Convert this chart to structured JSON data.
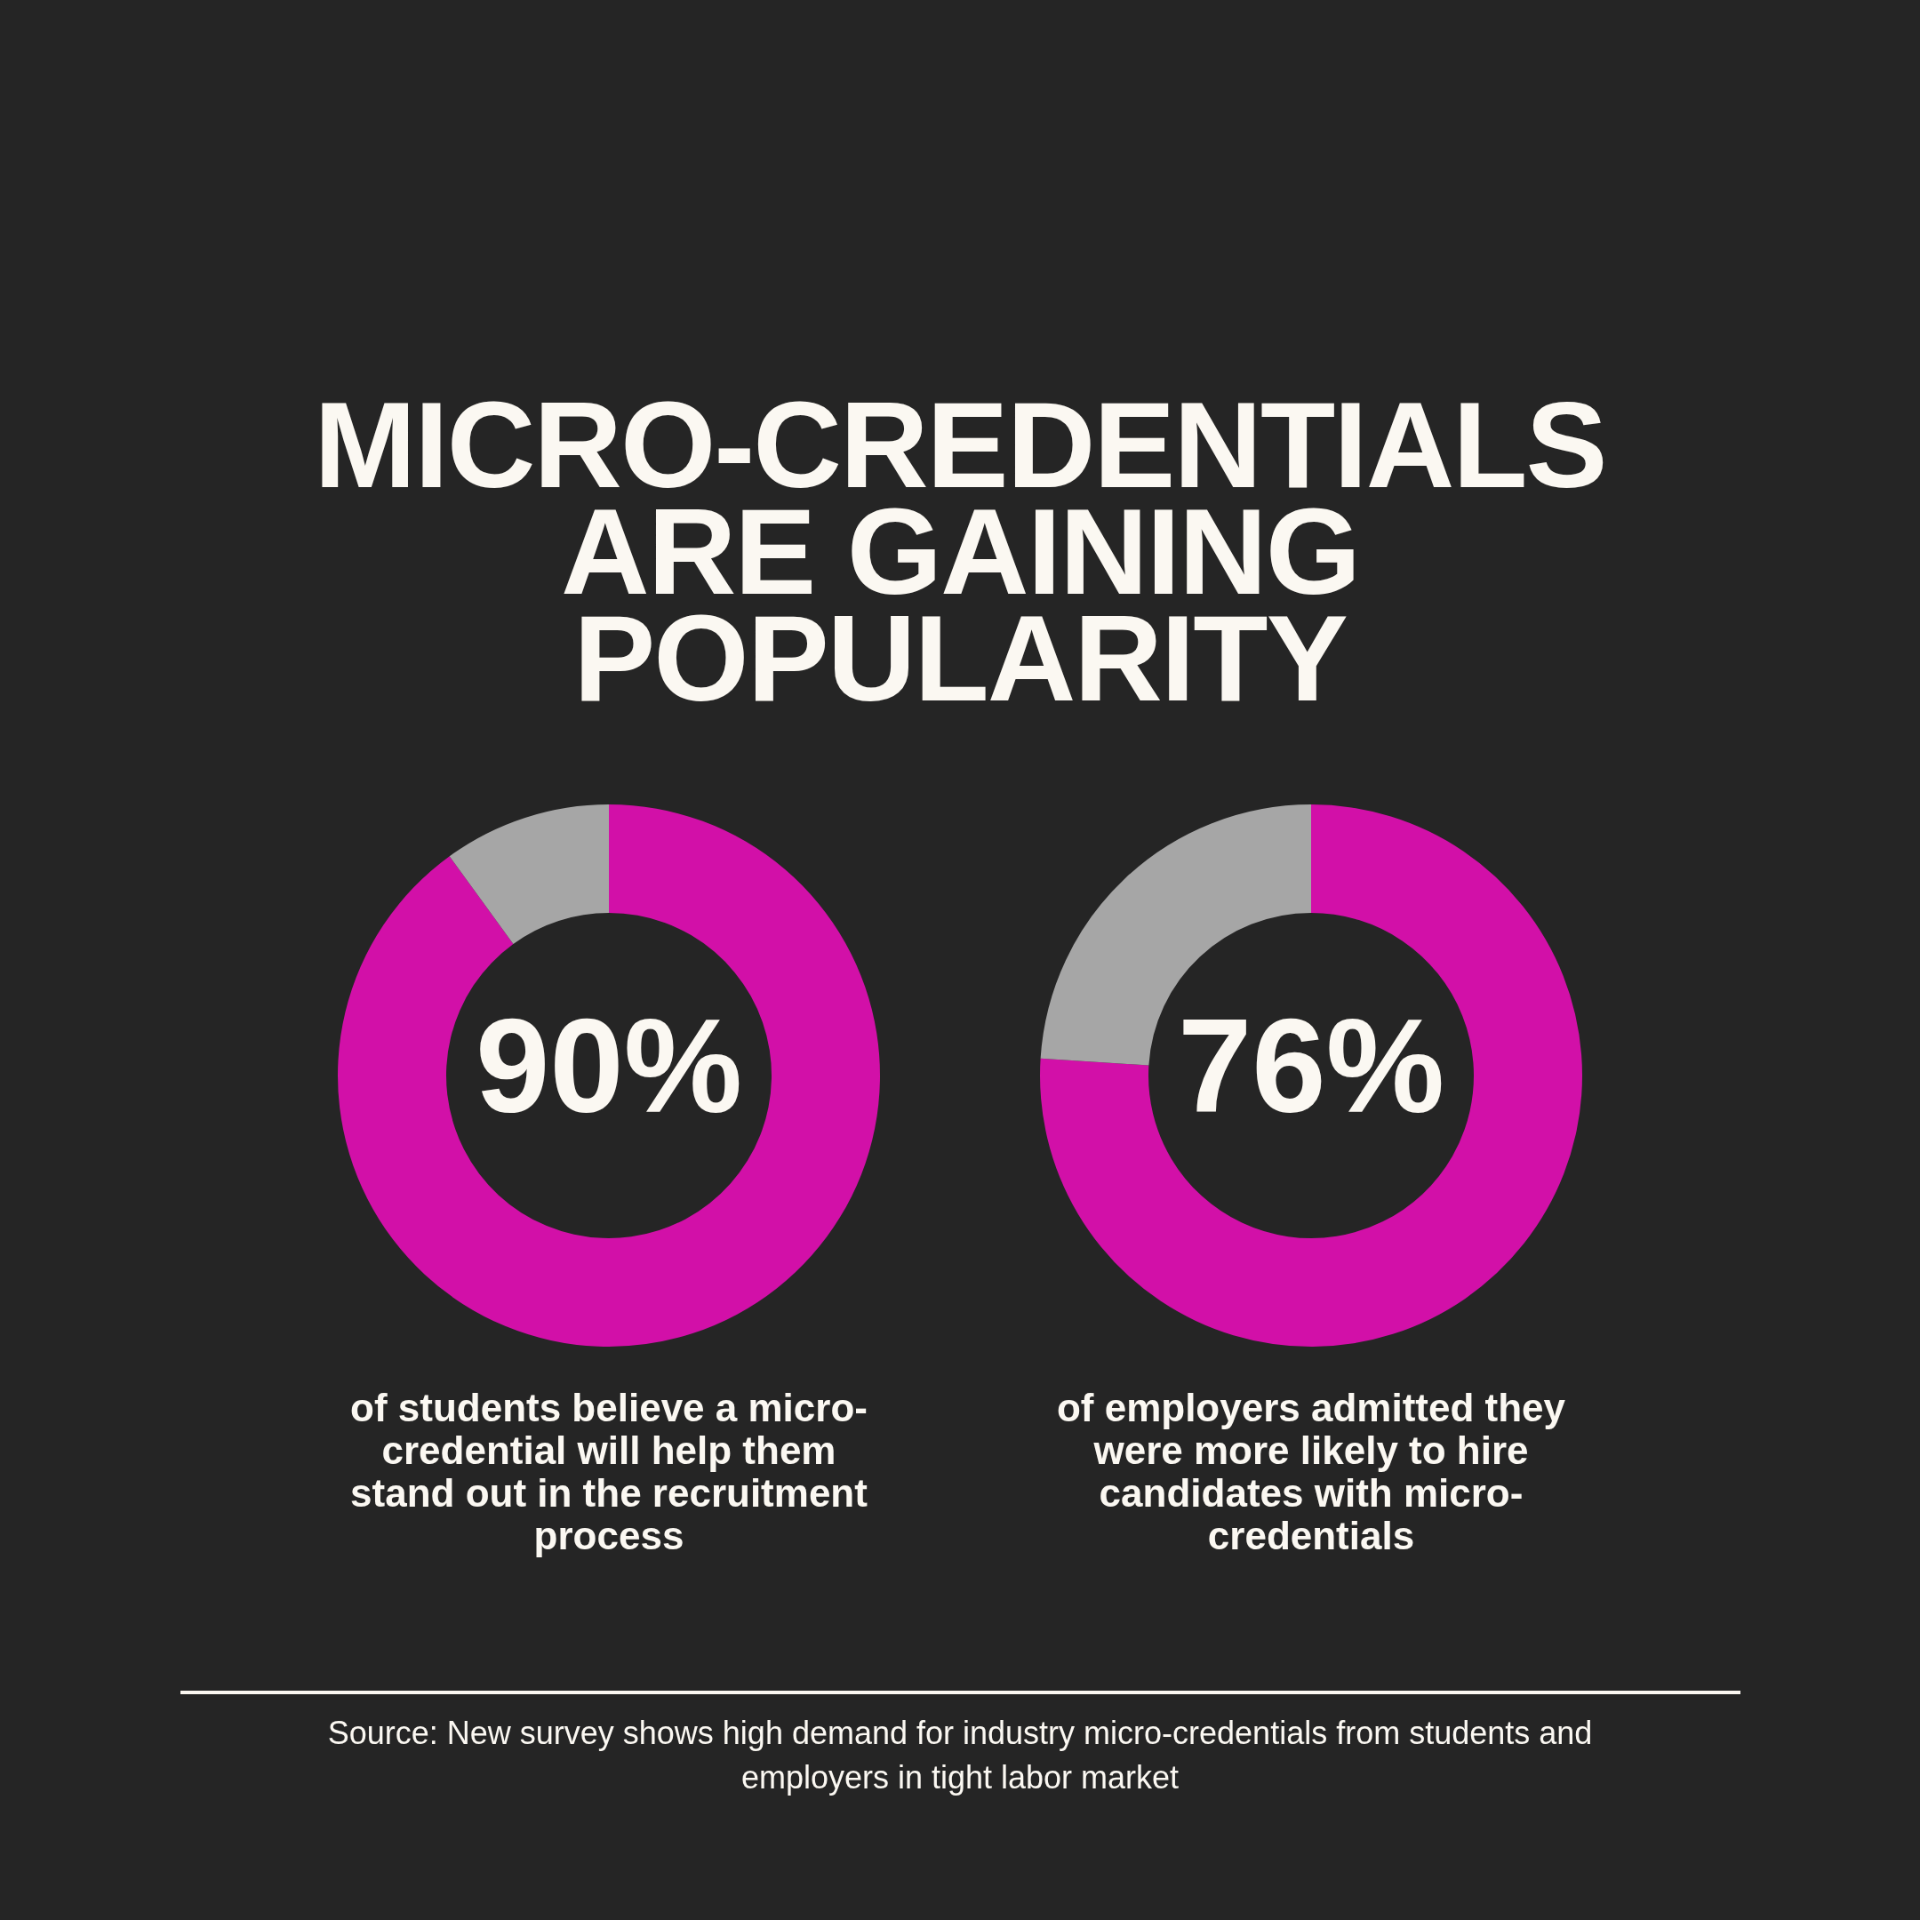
{
  "chart_data": [
    {
      "type": "donut",
      "title": "MICRO-CREDENTIALS ARE GAINING POPULARITY",
      "categories": [
        null,
        null
      ],
      "values": [
        90,
        10
      ],
      "colors": [
        "#d210a8",
        "#a6a6a6"
      ],
      "value_labels": [
        "90%",
        null
      ],
      "legend": false,
      "annotations": [
        "of students believe a micro-credential will help them stand out in the recruitment process"
      ]
    },
    {
      "type": "donut",
      "categories": [
        null,
        null
      ],
      "values": [
        76,
        24
      ],
      "colors": [
        "#d210a8",
        "#a6a6a6"
      ],
      "value_labels": [
        "76%",
        null
      ],
      "legend": false,
      "annotations": [
        "of employers admitted they were more likely to hire candidates with micro-credentials",
        "Source: New survey shows high demand for industry micro-credentials from students and employers in tight labor market"
      ]
    }
  ]
}
